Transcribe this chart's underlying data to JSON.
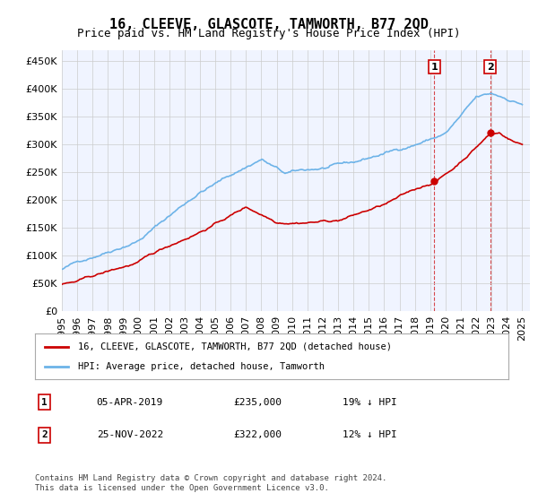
{
  "title": "16, CLEEVE, GLASCOTE, TAMWORTH, B77 2QD",
  "subtitle": "Price paid vs. HM Land Registry's House Price Index (HPI)",
  "ylabel_ticks": [
    "£0",
    "£50K",
    "£100K",
    "£150K",
    "£200K",
    "£250K",
    "£300K",
    "£350K",
    "£400K",
    "£450K"
  ],
  "ytick_values": [
    0,
    50000,
    100000,
    150000,
    200000,
    250000,
    300000,
    350000,
    400000,
    450000
  ],
  "ylim": [
    0,
    470000
  ],
  "xlim_start": 1995.0,
  "xlim_end": 2025.5,
  "xtick_years": [
    1995,
    1996,
    1997,
    1998,
    1999,
    2000,
    2001,
    2002,
    2003,
    2004,
    2005,
    2006,
    2007,
    2008,
    2009,
    2010,
    2011,
    2012,
    2013,
    2014,
    2015,
    2016,
    2017,
    2018,
    2019,
    2020,
    2021,
    2022,
    2023,
    2024,
    2025
  ],
  "hpi_color": "#6db3e8",
  "price_color": "#cc0000",
  "sale1_x": 2019.27,
  "sale1_y": 235000,
  "sale1_label": "1",
  "sale2_x": 2022.9,
  "sale2_y": 322000,
  "sale2_label": "2",
  "vline_color": "#cc0000",
  "annotation_box_color": "#cc0000",
  "legend_line1": "16, CLEEVE, GLASCOTE, TAMWORTH, B77 2QD (detached house)",
  "legend_line2": "HPI: Average price, detached house, Tamworth",
  "table_row1_num": "1",
  "table_row1_date": "05-APR-2019",
  "table_row1_price": "£235,000",
  "table_row1_hpi": "19% ↓ HPI",
  "table_row2_num": "2",
  "table_row2_date": "25-NOV-2022",
  "table_row2_price": "£322,000",
  "table_row2_hpi": "12% ↓ HPI",
  "footer": "Contains HM Land Registry data © Crown copyright and database right 2024.\nThis data is licensed under the Open Government Licence v3.0.",
  "background_color": "#ffffff",
  "plot_bg_color": "#f0f4ff",
  "grid_color": "#cccccc",
  "title_fontsize": 11,
  "subtitle_fontsize": 9,
  "tick_fontsize": 8
}
